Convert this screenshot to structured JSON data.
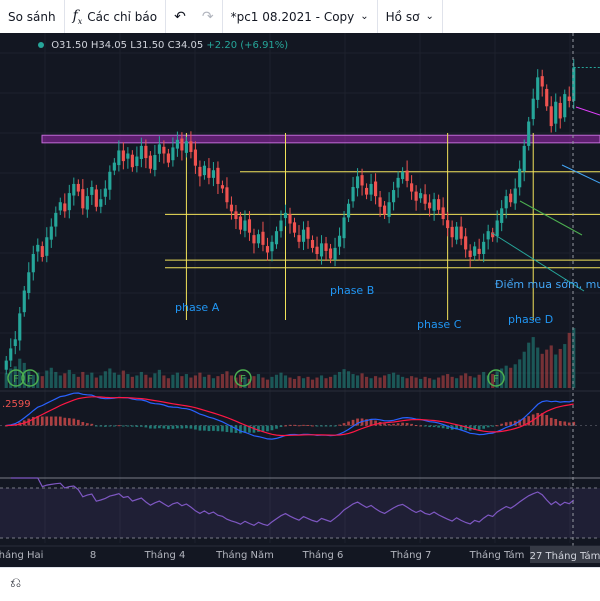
{
  "toolbar": {
    "compare_label": "So sánh",
    "indicators_label": "Các chỉ báo",
    "indicators_icon": "fx-icon",
    "undo_icon": "undo-icon",
    "redo_icon": "redo-icon",
    "layout_name": "*pc1 08.2021 - Copy",
    "profile_label": "Hồ sơ"
  },
  "legend": {
    "open": "O31.50",
    "high": "H34.05",
    "low": "L31.50",
    "close": "C34.05",
    "change": "+2.20 (+6.91%)"
  },
  "macd_value": ".2599",
  "bottom": {
    "icon": "replay-icon",
    "icon_glyph": "⎌"
  },
  "chart_data": {
    "type": "candlestick",
    "xlabels": [
      "Tháng Hai",
      "8",
      "Tháng 4",
      "Tháng Năm",
      "Tháng 6",
      "Tháng 7",
      "Tháng Tám",
      "27 Tháng Tám"
    ],
    "ohlc": {
      "open": 31.5,
      "high": 34.05,
      "low": 31.5,
      "close": 34.05,
      "change": 2.2,
      "change_pct": 6.91
    },
    "closes": [
      14.8,
      15.6,
      16.2,
      17.9,
      19.4,
      20.6,
      21.8,
      22.4,
      21.6,
      22.9,
      23.6,
      24.5,
      25.2,
      24.6,
      25.8,
      26.4,
      25.9,
      24.8,
      25.6,
      26.2,
      24.9,
      25.4,
      26.1,
      27.2,
      27.8,
      28.6,
      27.9,
      28.4,
      27.5,
      28.2,
      28.9,
      28.1,
      27.4,
      28.3,
      29.0,
      28.4,
      27.8,
      28.8,
      29.3,
      28.6,
      29.2,
      28.5,
      27.6,
      26.9,
      27.6,
      26.8,
      27.3,
      26.4,
      26.1,
      25.2,
      24.6,
      24.1,
      23.4,
      24.0,
      23.2,
      22.5,
      23.1,
      22.4,
      21.9,
      22.6,
      23.3,
      24.0,
      24.5,
      23.8,
      23.2,
      22.6,
      23.4,
      22.8,
      22.2,
      21.8,
      22.5,
      22.0,
      21.5,
      22.2,
      23.0,
      24.2,
      25.1,
      26.2,
      26.9,
      26.3,
      25.7,
      26.4,
      25.6,
      24.9,
      24.4,
      25.2,
      26.0,
      26.8,
      27.2,
      26.6,
      25.9,
      25.3,
      25.8,
      25.1,
      24.8,
      25.4,
      24.7,
      24.1,
      23.5,
      22.9,
      23.6,
      22.8,
      22.1,
      21.6,
      22.3,
      21.8,
      22.6,
      23.3,
      22.9,
      24.0,
      24.8,
      25.6,
      25.2,
      26.1,
      27.4,
      28.9,
      30.5,
      32.0,
      33.4,
      32.8,
      31.5,
      30.2,
      31.8,
      30.7,
      32.3,
      31.85,
      34.05
    ],
    "volume": [
      2.1,
      2.8,
      3.1,
      4.2,
      3.6,
      2.4,
      1.9,
      2.2,
      1.7,
      2.5,
      2.9,
      2.3,
      1.8,
      2.1,
      2.6,
      2.0,
      1.6,
      2.3,
      1.9,
      2.2,
      1.5,
      1.8,
      2.4,
      2.8,
      2.2,
      1.9,
      2.5,
      2.0,
      1.6,
      1.8,
      2.3,
      1.9,
      1.5,
      2.1,
      2.6,
      1.8,
      1.4,
      1.9,
      2.2,
      1.7,
      2.0,
      1.5,
      1.8,
      2.2,
      1.6,
      1.9,
      1.4,
      1.7,
      2.0,
      2.4,
      1.8,
      1.5,
      1.9,
      1.6,
      1.3,
      1.7,
      2.0,
      1.5,
      1.2,
      1.6,
      1.9,
      2.2,
      1.8,
      1.5,
      1.3,
      1.7,
      1.4,
      1.6,
      1.2,
      1.5,
      1.8,
      1.4,
      1.6,
      1.9,
      2.3,
      2.7,
      2.4,
      2.0,
      1.8,
      2.1,
      1.6,
      1.4,
      1.7,
      1.5,
      1.8,
      2.0,
      2.2,
      1.9,
      1.6,
      1.4,
      1.7,
      1.5,
      1.3,
      1.6,
      1.4,
      1.2,
      1.5,
      1.8,
      2.0,
      1.6,
      1.4,
      1.8,
      2.1,
      1.7,
      1.5,
      1.9,
      2.3,
      1.8,
      2.0,
      2.4,
      2.8,
      3.2,
      2.9,
      3.4,
      4.1,
      5.2,
      6.5,
      7.3,
      5.8,
      4.9,
      5.5,
      6.1,
      4.8,
      5.6,
      6.3,
      7.9,
      8.6
    ],
    "zones": {
      "resistance_band": [
        29.1,
        29.6
      ],
      "yellow_lines": [
        27.2,
        24.4,
        21.4,
        20.9
      ],
      "vertical_lines_at_index": [
        40,
        62,
        98,
        117
      ]
    },
    "annotations": [
      "phase A",
      "phase B",
      "phase C",
      "phase D",
      "Điểm mua sớm, mua",
      "F",
      "F",
      "F",
      "F"
    ],
    "colors": {
      "up": "#26a69a",
      "down": "#ef5350",
      "background": "#131722",
      "macd": "#2962ff",
      "signal": "#ff1744",
      "rsi": "#7e57c2",
      "band": "#9c27b0",
      "lines": "#f2e35a",
      "annotation": "#2196f3"
    }
  }
}
